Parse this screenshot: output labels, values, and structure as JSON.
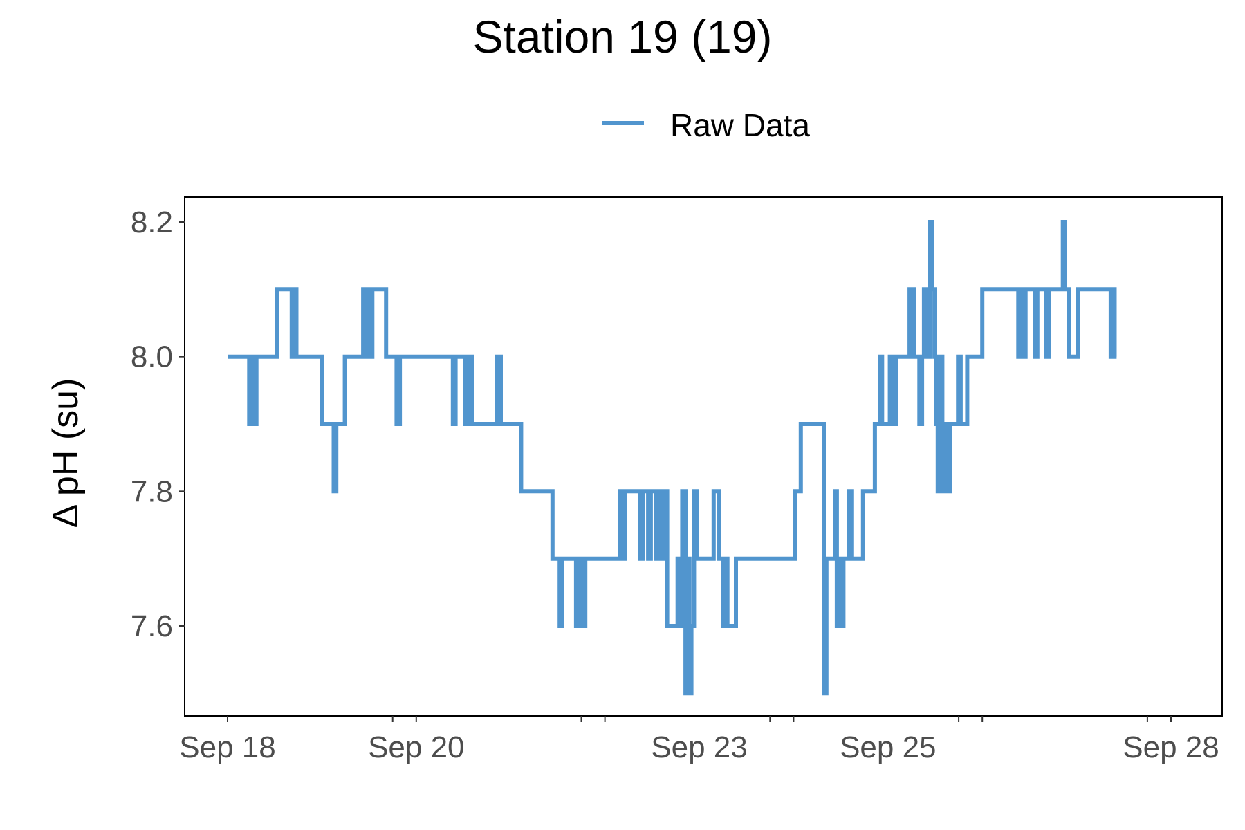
{
  "chart_data": {
    "type": "line",
    "title": "Station 19 (19)",
    "xlabel": "",
    "ylabel": "Δ pH (su)",
    "x_ticks": [
      "Sep 18",
      "Sep 20",
      "Sep 23",
      "Sep 25",
      "Sep 28"
    ],
    "y_ticks": [
      "7.6",
      "7.8",
      "8.0",
      "8.2"
    ],
    "xlim": [
      "2023-09-18",
      "2023-09-28"
    ],
    "ylim": [
      7.48,
      8.24
    ],
    "grid": false,
    "legend_position": "top",
    "series": [
      {
        "name": "Raw Data",
        "color": "#5195ce",
        "step": true,
        "points": [
          [
            "2023-09-18T00:00",
            8.0
          ],
          [
            "2023-09-18T05:30",
            7.9
          ],
          [
            "2023-09-18T06:10",
            8.0
          ],
          [
            "2023-09-18T06:40",
            7.9
          ],
          [
            "2023-09-18T07:20",
            8.0
          ],
          [
            "2023-09-18T12:30",
            8.1
          ],
          [
            "2023-09-18T16:20",
            8.0
          ],
          [
            "2023-09-18T16:50",
            8.1
          ],
          [
            "2023-09-18T17:30",
            8.0
          ],
          [
            "2023-09-19T00:00",
            7.9
          ],
          [
            "2023-09-19T03:00",
            7.8
          ],
          [
            "2023-09-19T03:40",
            7.9
          ],
          [
            "2023-09-19T05:50",
            8.0
          ],
          [
            "2023-09-19T10:30",
            8.1
          ],
          [
            "2023-09-19T11:00",
            8.0
          ],
          [
            "2023-09-19T11:40",
            8.1
          ],
          [
            "2023-09-19T12:20",
            8.0
          ],
          [
            "2023-09-19T12:50",
            8.1
          ],
          [
            "2023-09-19T16:20",
            8.0
          ],
          [
            "2023-09-19T19:00",
            7.9
          ],
          [
            "2023-09-19T19:50",
            8.0
          ],
          [
            "2023-09-20T09:20",
            7.9
          ],
          [
            "2023-09-20T10:00",
            8.0
          ],
          [
            "2023-09-20T12:30",
            7.9
          ],
          [
            "2023-09-20T13:30",
            8.0
          ],
          [
            "2023-09-20T14:10",
            7.9
          ],
          [
            "2023-09-20T20:30",
            8.0
          ],
          [
            "2023-09-20T21:30",
            7.9
          ],
          [
            "2023-09-21T02:40",
            7.8
          ],
          [
            "2023-09-21T10:40",
            7.7
          ],
          [
            "2023-09-21T12:30",
            7.6
          ],
          [
            "2023-09-21T13:10",
            7.7
          ],
          [
            "2023-09-21T16:40",
            7.6
          ],
          [
            "2023-09-21T17:40",
            7.7
          ],
          [
            "2023-09-21T18:20",
            7.6
          ],
          [
            "2023-09-21T19:00",
            7.7
          ],
          [
            "2023-09-22T03:50",
            7.8
          ],
          [
            "2023-09-22T04:40",
            7.7
          ],
          [
            "2023-09-22T05:10",
            7.8
          ],
          [
            "2023-09-22T09:00",
            7.7
          ],
          [
            "2023-09-22T09:40",
            7.8
          ],
          [
            "2023-09-22T11:00",
            7.7
          ],
          [
            "2023-09-22T11:40",
            7.8
          ],
          [
            "2023-09-22T13:00",
            7.7
          ],
          [
            "2023-09-22T13:40",
            7.8
          ],
          [
            "2023-09-22T14:20",
            7.7
          ],
          [
            "2023-09-22T15:00",
            7.8
          ],
          [
            "2023-09-22T15:50",
            7.6
          ],
          [
            "2023-09-22T18:30",
            7.7
          ],
          [
            "2023-09-22T19:00",
            7.6
          ],
          [
            "2023-09-22T19:40",
            7.8
          ],
          [
            "2023-09-22T20:30",
            7.5
          ],
          [
            "2023-09-22T21:00",
            7.7
          ],
          [
            "2023-09-22T21:30",
            7.5
          ],
          [
            "2023-09-22T22:00",
            7.6
          ],
          [
            "2023-09-22T22:40",
            7.8
          ],
          [
            "2023-09-22T23:20",
            7.7
          ],
          [
            "2023-09-23T03:40",
            7.8
          ],
          [
            "2023-09-23T05:00",
            7.7
          ],
          [
            "2023-09-23T06:00",
            7.6
          ],
          [
            "2023-09-23T06:40",
            7.7
          ],
          [
            "2023-09-23T07:10",
            7.6
          ],
          [
            "2023-09-23T09:20",
            7.7
          ],
          [
            "2023-09-24T00:20",
            7.8
          ],
          [
            "2023-09-24T01:50",
            7.9
          ],
          [
            "2023-09-24T07:40",
            7.5
          ],
          [
            "2023-09-24T08:20",
            7.7
          ],
          [
            "2023-09-24T10:30",
            7.8
          ],
          [
            "2023-09-24T11:00",
            7.6
          ],
          [
            "2023-09-24T11:40",
            7.7
          ],
          [
            "2023-09-24T12:20",
            7.6
          ],
          [
            "2023-09-24T12:40",
            7.7
          ],
          [
            "2023-09-24T14:00",
            7.8
          ],
          [
            "2023-09-24T14:40",
            7.7
          ],
          [
            "2023-09-24T17:40",
            7.8
          ],
          [
            "2023-09-24T20:40",
            7.9
          ],
          [
            "2023-09-24T21:30",
            7.9
          ],
          [
            "2023-09-24T22:00",
            8.0
          ],
          [
            "2023-09-24T22:30",
            7.9
          ],
          [
            "2023-09-25T00:30",
            8.0
          ],
          [
            "2023-09-25T01:00",
            7.9
          ],
          [
            "2023-09-25T02:00",
            8.0
          ],
          [
            "2023-09-25T05:00",
            8.0
          ],
          [
            "2023-09-25T05:30",
            8.1
          ],
          [
            "2023-09-25T06:40",
            8.0
          ],
          [
            "2023-09-25T08:00",
            7.9
          ],
          [
            "2023-09-25T08:40",
            8.0
          ],
          [
            "2023-09-25T09:10",
            8.1
          ],
          [
            "2023-09-25T10:00",
            8.0
          ],
          [
            "2023-09-25T10:40",
            8.2
          ],
          [
            "2023-09-25T11:10",
            8.1
          ],
          [
            "2023-09-25T11:50",
            8.0
          ],
          [
            "2023-09-25T12:20",
            7.9
          ],
          [
            "2023-09-25T12:40",
            7.8
          ],
          [
            "2023-09-25T13:20",
            8.0
          ],
          [
            "2023-09-25T13:50",
            7.8
          ],
          [
            "2023-09-25T14:30",
            7.9
          ],
          [
            "2023-09-25T15:00",
            7.8
          ],
          [
            "2023-09-25T15:50",
            7.9
          ],
          [
            "2023-09-25T17:50",
            8.0
          ],
          [
            "2023-09-25T18:30",
            7.9
          ],
          [
            "2023-09-25T20:10",
            8.0
          ],
          [
            "2023-09-26T00:00",
            8.1
          ],
          [
            "2023-09-26T09:10",
            8.0
          ],
          [
            "2023-09-26T09:40",
            8.1
          ],
          [
            "2023-09-26T10:30",
            8.0
          ],
          [
            "2023-09-26T11:00",
            8.1
          ],
          [
            "2023-09-26T13:20",
            8.0
          ],
          [
            "2023-09-26T14:00",
            8.1
          ],
          [
            "2023-09-26T16:20",
            8.0
          ],
          [
            "2023-09-26T17:00",
            8.1
          ],
          [
            "2023-09-26T20:30",
            8.2
          ],
          [
            "2023-09-26T21:00",
            8.1
          ],
          [
            "2023-09-26T22:00",
            8.0
          ],
          [
            "2023-09-27T00:20",
            8.1
          ],
          [
            "2023-09-27T08:40",
            8.0
          ],
          [
            "2023-09-27T09:10",
            8.1
          ],
          [
            "2023-09-27T09:40",
            8.0
          ],
          [
            "2023-09-27T10:10",
            8.0
          ]
        ]
      }
    ]
  }
}
